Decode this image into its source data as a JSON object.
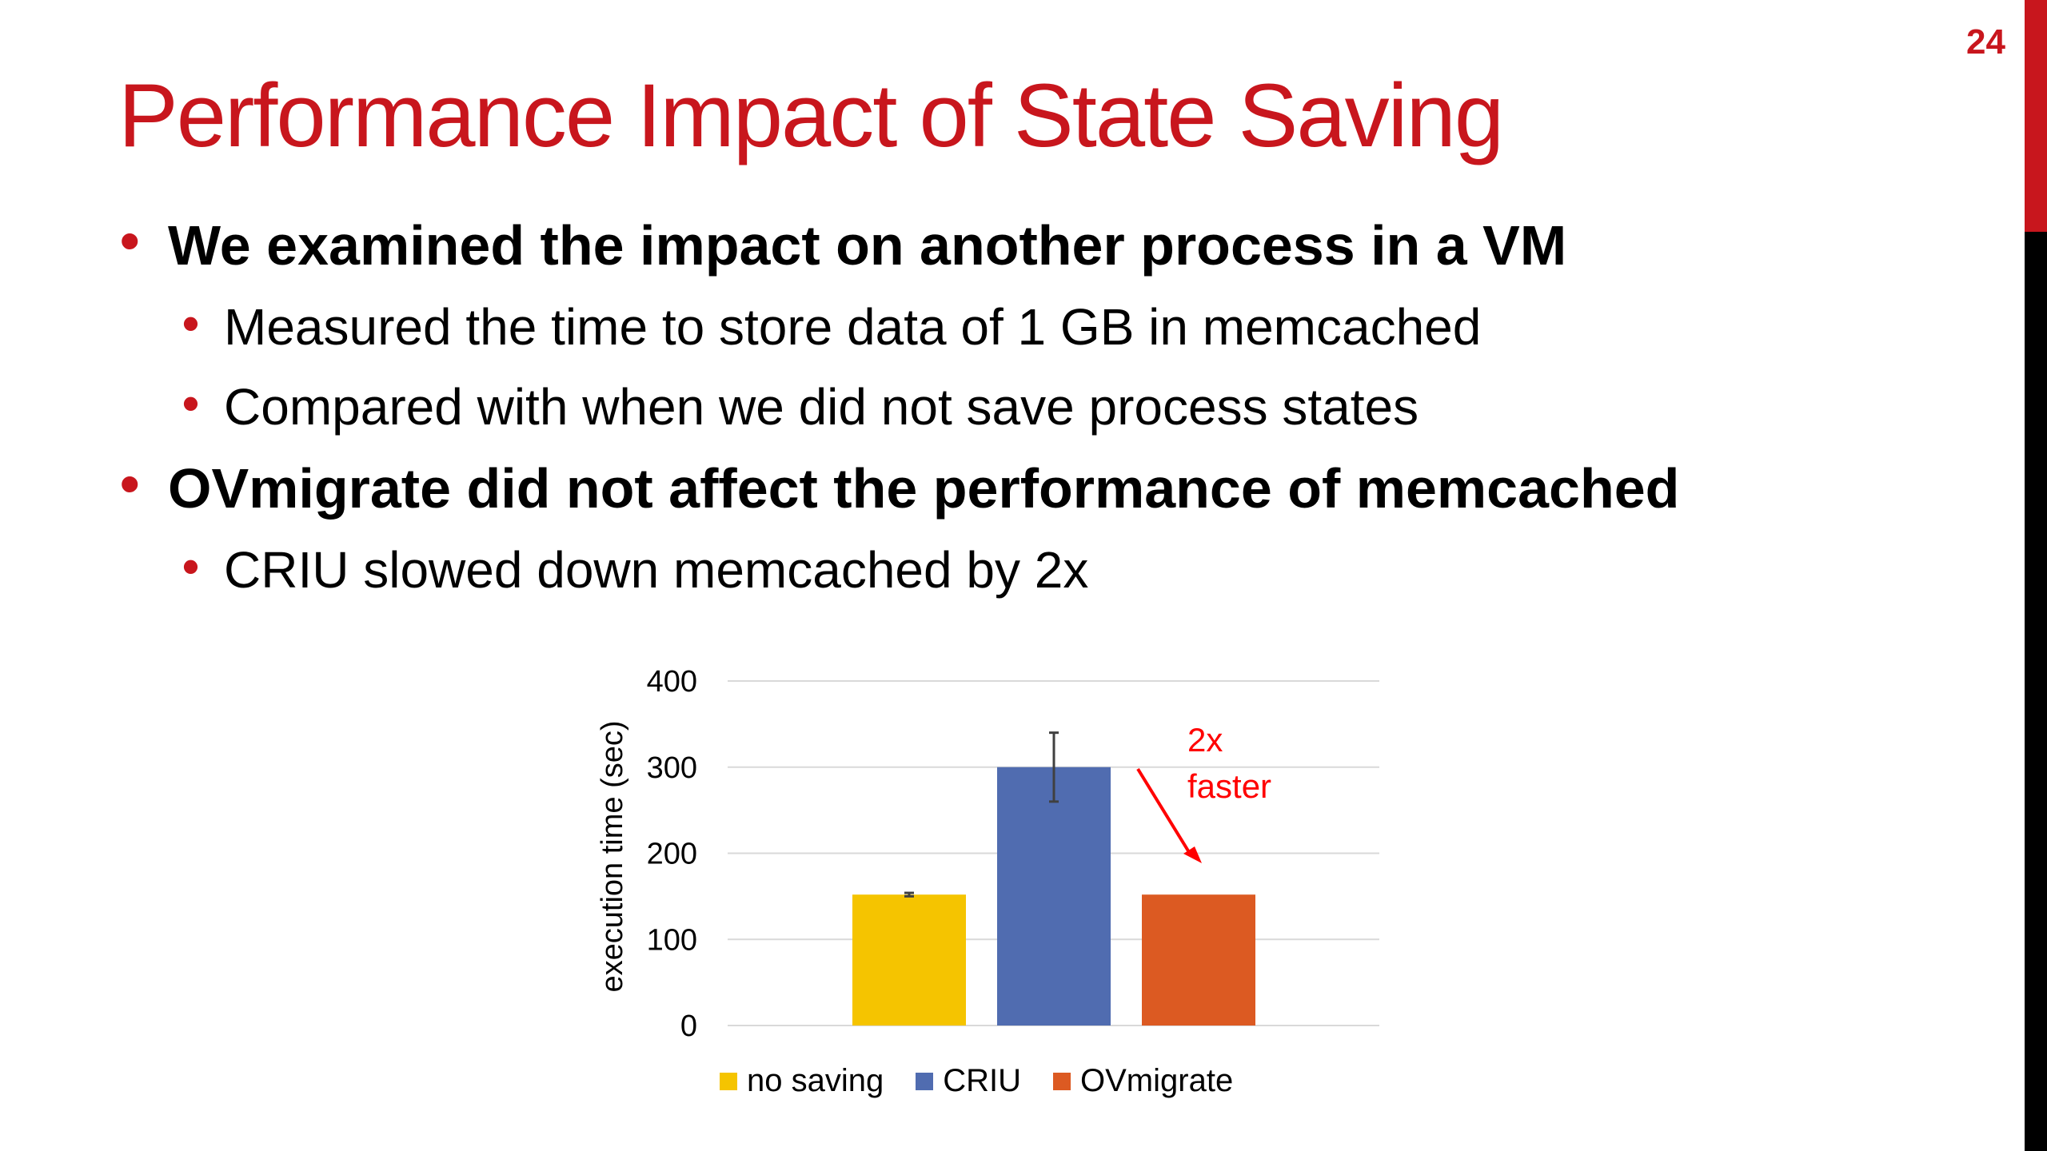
{
  "slide": {
    "page_number": "24",
    "title": "Performance Impact of State Saving",
    "bullets": [
      {
        "level": 1,
        "text": "We examined the impact on another process in a VM"
      },
      {
        "level": 2,
        "text": "Measured the time to store data of 1 GB in memcached"
      },
      {
        "level": 2,
        "text": "Compared with when we did not save process states"
      },
      {
        "level": 1,
        "text": "OVmigrate did not affect the performance of memcached"
      },
      {
        "level": 2,
        "text": "CRIU slowed down memcached by 2x"
      }
    ],
    "colors": {
      "accent": "#c8161d",
      "edge_bar_top": "#c8161d",
      "edge_bar_bottom": "#000000"
    }
  },
  "chart_data": {
    "type": "bar",
    "categories": [
      "no saving",
      "CRIU",
      "OVmigrate"
    ],
    "values": [
      152,
      300,
      152
    ],
    "error": [
      2,
      40,
      0
    ],
    "colors": [
      "#f5c400",
      "#506cb0",
      "#dc5a22"
    ],
    "ylabel": "execution time (sec)",
    "ylim": [
      0,
      400
    ],
    "yticks": [
      0,
      100,
      200,
      300,
      400
    ],
    "grid": true,
    "legend_position": "bottom",
    "annotation": {
      "lines": [
        "2x",
        "faster"
      ],
      "color": "#ff0000"
    }
  }
}
